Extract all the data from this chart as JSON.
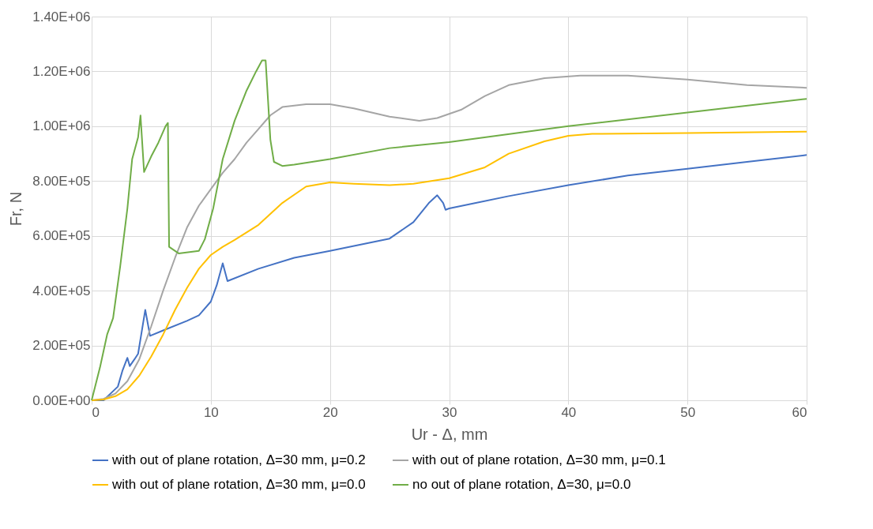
{
  "chart_data": {
    "type": "line",
    "xlabel": "Ur - Δ, mm",
    "ylabel": "Fr, N",
    "xlim": [
      0,
      60
    ],
    "xticks": [
      0,
      10,
      20,
      30,
      40,
      50,
      60
    ],
    "ylim": [
      0,
      1400000
    ],
    "yticks": [
      {
        "value": 0,
        "label": "0.00E+00"
      },
      {
        "value": 200000,
        "label": "2.00E+05"
      },
      {
        "value": 400000,
        "label": "4.00E+05"
      },
      {
        "value": 600000,
        "label": "6.00E+05"
      },
      {
        "value": 800000,
        "label": "8.00E+05"
      },
      {
        "value": 1000000,
        "label": "1.00E+06"
      },
      {
        "value": 1200000,
        "label": "1.20E+06"
      },
      {
        "value": 1400000,
        "label": "1.40E+06"
      }
    ],
    "grid": true,
    "legend": "bottom",
    "marker": "none",
    "line_style": "solid",
    "series": [
      {
        "name": "with out of plane rotation, Δ=30 mm, μ=0.2",
        "color": "#4472c4",
        "x": [
          0,
          1,
          2.2,
          2.6,
          3.0,
          3.2,
          3.6,
          3.9,
          4.5,
          4.9,
          6,
          8,
          9,
          10,
          10.5,
          11,
          11.4,
          14,
          17,
          20,
          25,
          27,
          28.3,
          29,
          29.5,
          29.7,
          30,
          35,
          40,
          45,
          50,
          55,
          60
        ],
        "values": [
          0,
          0,
          50000,
          110000,
          155000,
          125000,
          150000,
          170000,
          330000,
          235000,
          255000,
          290000,
          310000,
          360000,
          420000,
          500000,
          435000,
          480000,
          520000,
          545000,
          590000,
          650000,
          720000,
          748000,
          720000,
          695000,
          700000,
          745000,
          785000,
          820000,
          845000,
          870000,
          895000
        ]
      },
      {
        "name": "with out of plane rotation, Δ=30 mm, μ=0.1",
        "color": "#a5a5a5",
        "x": [
          0,
          1,
          2,
          3,
          4,
          5,
          6,
          7,
          8,
          9,
          10,
          11,
          12,
          13,
          14,
          15,
          16,
          18,
          20,
          22,
          25,
          27.5,
          29,
          31,
          33,
          35,
          38,
          41,
          45,
          50,
          55,
          60
        ],
        "values": [
          0,
          5000,
          25000,
          70000,
          150000,
          270000,
          400000,
          520000,
          630000,
          710000,
          770000,
          830000,
          880000,
          940000,
          990000,
          1040000,
          1070000,
          1080000,
          1080000,
          1065000,
          1035000,
          1020000,
          1030000,
          1060000,
          1110000,
          1150000,
          1175000,
          1185000,
          1185000,
          1170000,
          1150000,
          1140000
        ]
      },
      {
        "name": "with out of plane rotation, Δ=30 mm, μ=0.0",
        "color": "#ffc000",
        "x": [
          0,
          1,
          2,
          3,
          4,
          5,
          6,
          7,
          8,
          9,
          10,
          11,
          12,
          14,
          16,
          18,
          20,
          22,
          25,
          27,
          30,
          33,
          35,
          38,
          40,
          42,
          50,
          60
        ],
        "values": [
          0,
          3000,
          15000,
          40000,
          90000,
          160000,
          240000,
          330000,
          410000,
          480000,
          530000,
          560000,
          585000,
          640000,
          720000,
          780000,
          795000,
          790000,
          785000,
          790000,
          810000,
          850000,
          900000,
          945000,
          965000,
          972000,
          975000,
          980000
        ]
      },
      {
        "name": "no out of plane rotation, Δ=30, μ=0.0",
        "color": "#70ad47",
        "x": [
          0,
          0.7,
          1.3,
          1.8,
          2.4,
          3.0,
          3.4,
          3.9,
          4.1,
          4.4,
          5.0,
          5.6,
          6.2,
          6.4,
          6.5,
          7.3,
          9.0,
          9.5,
          10.2,
          11,
          12,
          13,
          13.8,
          14.3,
          14.6,
          15,
          15.3,
          16,
          17,
          20,
          25,
          30,
          40,
          50,
          60
        ],
        "values": [
          0,
          120000,
          240000,
          300000,
          490000,
          700000,
          880000,
          960000,
          1039000,
          833000,
          890000,
          940000,
          1000000,
          1012000,
          560000,
          536000,
          545000,
          588000,
          700000,
          880000,
          1020000,
          1130000,
          1200000,
          1240000,
          1240000,
          950000,
          870000,
          855000,
          860000,
          880000,
          920000,
          942000,
          1000000,
          1050000,
          1100000
        ]
      }
    ]
  }
}
